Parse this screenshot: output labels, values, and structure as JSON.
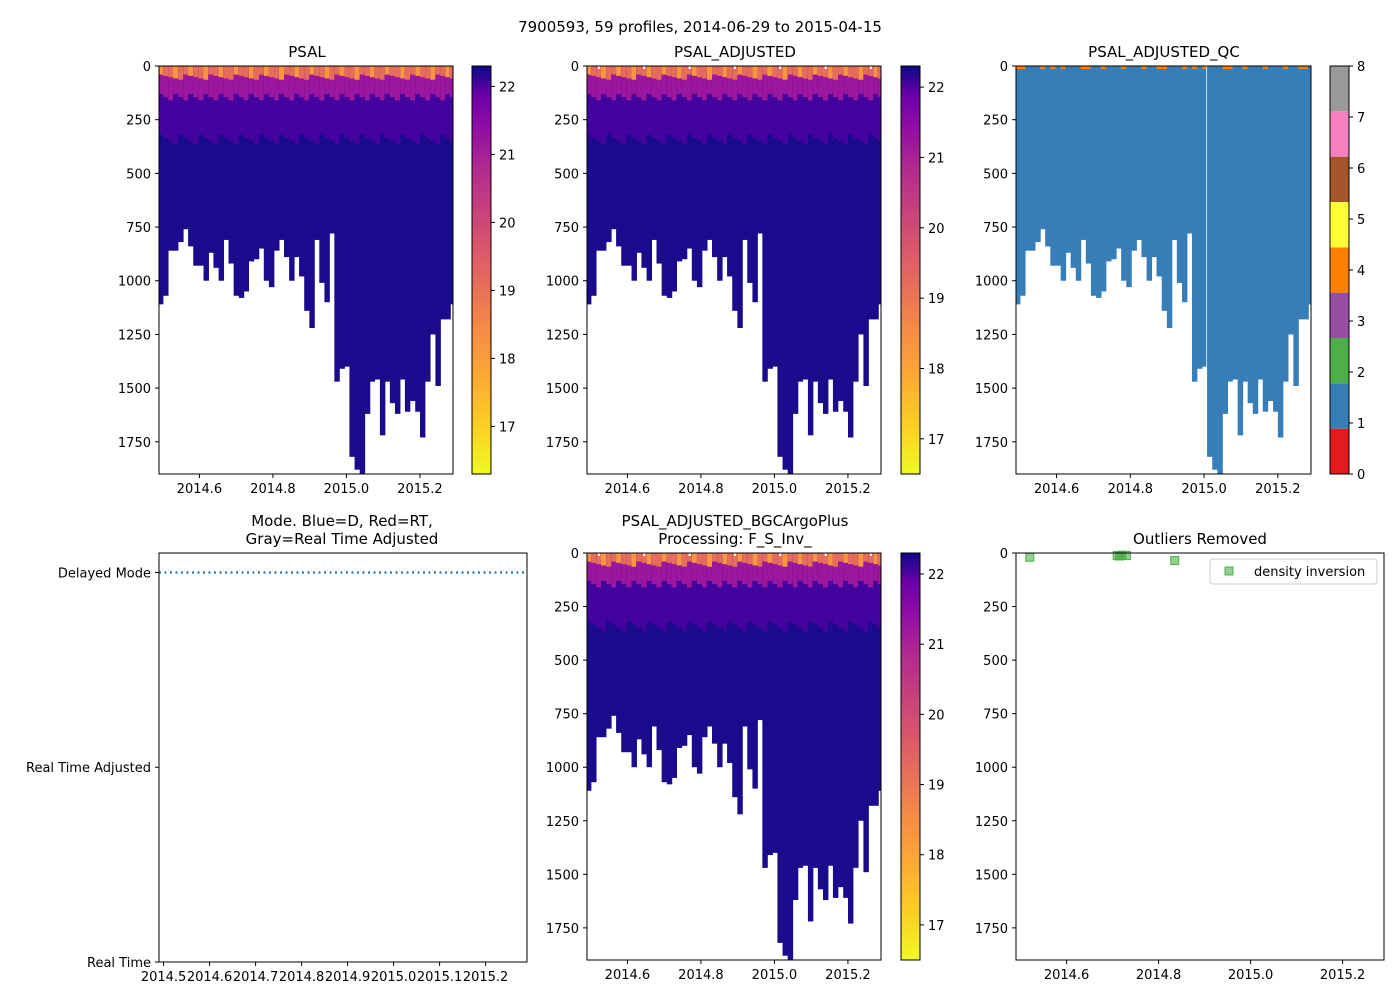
{
  "figure": {
    "suptitle": "7900593, 59 profiles, 2014-06-29 to 2015-04-15"
  },
  "colors": {
    "deep_salinity": "#1a0a8c",
    "qc_fill": "#377eb8",
    "mode_line": "#1f77b4",
    "outlier_marker": "#4daf4a"
  },
  "chart_data": [
    {
      "id": "psal",
      "type": "heatmap",
      "title": "PSAL",
      "x_ticks": [
        "2014.6",
        "2014.8",
        "2015.0",
        "2015.2"
      ],
      "x_tick_values": [
        2014.6,
        2014.8,
        2015.0,
        2015.2
      ],
      "xlim": [
        2014.49,
        2015.29
      ],
      "y_ticks": [
        "0",
        "250",
        "500",
        "750",
        "1000",
        "1250",
        "1500",
        "1750"
      ],
      "y_tick_values": [
        0,
        250,
        500,
        750,
        1000,
        1250,
        1500,
        1750
      ],
      "ylim": [
        1900,
        0
      ],
      "colorbar": {
        "colormap": "plasma_r",
        "ticks": [
          "17",
          "18",
          "19",
          "20",
          "21",
          "22"
        ],
        "tick_values": [
          17,
          18,
          19,
          20,
          21,
          22
        ],
        "range": [
          16.3,
          22.3
        ]
      }
    },
    {
      "id": "psal_adj",
      "type": "heatmap",
      "title": "PSAL_ADJUSTED",
      "x_ticks": [
        "2014.6",
        "2014.8",
        "2015.0",
        "2015.2"
      ],
      "x_tick_values": [
        2014.6,
        2014.8,
        2015.0,
        2015.2
      ],
      "xlim": [
        2014.49,
        2015.29
      ],
      "y_ticks": [
        "0",
        "250",
        "500",
        "750",
        "1000",
        "1250",
        "1500",
        "1750"
      ],
      "y_tick_values": [
        0,
        250,
        500,
        750,
        1000,
        1250,
        1500,
        1750
      ],
      "ylim": [
        1900,
        0
      ],
      "colorbar": {
        "colormap": "plasma_r",
        "ticks": [
          "17",
          "18",
          "19",
          "20",
          "21",
          "22"
        ],
        "tick_values": [
          17,
          18,
          19,
          20,
          21,
          22
        ],
        "range": [
          16.5,
          22.3
        ]
      }
    },
    {
      "id": "psal_qc",
      "type": "heatmap",
      "title": "PSAL_ADJUSTED_QC",
      "x_ticks": [
        "2014.6",
        "2014.8",
        "2015.0",
        "2015.2"
      ],
      "x_tick_values": [
        2014.6,
        2014.8,
        2015.0,
        2015.2
      ],
      "xlim": [
        2014.49,
        2015.29
      ],
      "y_ticks": [
        "0",
        "250",
        "500",
        "750",
        "1000",
        "1250",
        "1500",
        "1750"
      ],
      "y_tick_values": [
        0,
        250,
        500,
        750,
        1000,
        1250,
        1500,
        1750
      ],
      "ylim": [
        1900,
        0
      ],
      "colorbar": {
        "colormap": "qc_categorical",
        "ticks": [
          "0",
          "1",
          "2",
          "3",
          "4",
          "5",
          "6",
          "7",
          "8"
        ],
        "tick_values": [
          0,
          1,
          2,
          3,
          4,
          5,
          6,
          7,
          8
        ],
        "range": [
          0,
          8
        ],
        "category_colors": [
          "#e41a1c",
          "#377eb8",
          "#4daf4a",
          "#984ea3",
          "#ff7f00",
          "#ffff33",
          "#a65628",
          "#f781bf",
          "#999999"
        ]
      }
    },
    {
      "id": "mode",
      "type": "line",
      "title_lines": [
        "Mode. Blue=D, Red=RT,",
        "Gray=Real Time Adjusted"
      ],
      "x_ticks": [
        "2014.5",
        "2014.6",
        "2014.7",
        "2014.8",
        "2014.9",
        "2015.0",
        "2015.1",
        "2015.2"
      ],
      "x_tick_values": [
        2014.5,
        2014.6,
        2014.7,
        2014.8,
        2014.9,
        2015.0,
        2015.1,
        2015.2
      ],
      "xlim": [
        2014.49,
        2015.29
      ],
      "y_ticks": [
        "Real Time",
        "Real Time Adjusted",
        "Delayed Mode"
      ],
      "y_tick_values": [
        0,
        1,
        2
      ],
      "ylim": [
        0,
        2.1
      ],
      "series": [
        {
          "name": "Delayed Mode",
          "style": "dotted",
          "x": [
            2014.49,
            2015.29
          ],
          "y": [
            2,
            2
          ]
        }
      ]
    },
    {
      "id": "psal_bgc",
      "type": "heatmap",
      "title_lines": [
        "PSAL_ADJUSTED_BGCArgoPlus",
        "Processing: F_S_Inv_"
      ],
      "x_ticks": [
        "2014.6",
        "2014.8",
        "2015.0",
        "2015.2"
      ],
      "x_tick_values": [
        2014.6,
        2014.8,
        2015.0,
        2015.2
      ],
      "xlim": [
        2014.49,
        2015.29
      ],
      "y_ticks": [
        "0",
        "250",
        "500",
        "750",
        "1000",
        "1250",
        "1500",
        "1750"
      ],
      "y_tick_values": [
        0,
        250,
        500,
        750,
        1000,
        1250,
        1500,
        1750
      ],
      "ylim": [
        1900,
        0
      ],
      "colorbar": {
        "colormap": "plasma_r",
        "ticks": [
          "17",
          "18",
          "19",
          "20",
          "21",
          "22"
        ],
        "tick_values": [
          17,
          18,
          19,
          20,
          21,
          22
        ],
        "range": [
          16.5,
          22.3
        ]
      }
    },
    {
      "id": "outliers",
      "type": "scatter",
      "title": "Outliers Removed",
      "x_ticks": [
        "2014.6",
        "2014.8",
        "2015.0",
        "2015.2"
      ],
      "x_tick_values": [
        2014.6,
        2014.8,
        2015.0,
        2015.2
      ],
      "xlim": [
        2014.49,
        2015.29
      ],
      "y_ticks": [
        "0",
        "250",
        "500",
        "750",
        "1000",
        "1250",
        "1500",
        "1750"
      ],
      "y_tick_values": [
        0,
        250,
        500,
        750,
        1000,
        1250,
        1500,
        1750
      ],
      "ylim": [
        1900,
        0
      ],
      "legend": {
        "label": "density inversion",
        "position": "top-right"
      },
      "series": [
        {
          "name": "density inversion",
          "x": [
            2014.52,
            2014.71,
            2014.715,
            2014.72,
            2014.73,
            2014.835
          ],
          "y": [
            20,
            12,
            14,
            10,
            12,
            35
          ]
        }
      ]
    }
  ],
  "profiles": {
    "x": [
      2014.494,
      2014.508,
      2014.522,
      2014.535,
      2014.549,
      2014.563,
      2014.576,
      2014.59,
      2014.604,
      2014.618,
      2014.631,
      2014.645,
      2014.659,
      2014.672,
      2014.686,
      2014.7,
      2014.714,
      2014.727,
      2014.741,
      2014.755,
      2014.769,
      2014.782,
      2014.796,
      2014.81,
      2014.823,
      2014.837,
      2014.851,
      2014.865,
      2014.878,
      2014.892,
      2014.906,
      2014.919,
      2014.933,
      2014.947,
      2014.961,
      2014.974,
      2014.988,
      2015.002,
      2015.015,
      2015.029,
      2015.043,
      2015.057,
      2015.07,
      2015.084,
      2015.098,
      2015.111,
      2015.125,
      2015.139,
      2015.153,
      2015.166,
      2015.18,
      2015.194,
      2015.207,
      2015.221,
      2015.235,
      2015.249,
      2015.262,
      2015.276,
      2015.288
    ],
    "max_depth": [
      1110,
      1070,
      860,
      860,
      820,
      760,
      840,
      930,
      930,
      1000,
      870,
      940,
      1000,
      810,
      920,
      1070,
      1080,
      1050,
      910,
      900,
      850,
      1000,
      1030,
      860,
      810,
      890,
      1000,
      890,
      980,
      1140,
      1220,
      810,
      1010,
      1100,
      780,
      1470,
      1410,
      1400,
      1820,
      1880,
      1910,
      1620,
      1470,
      1460,
      1720,
      1470,
      1570,
      1620,
      1460,
      1610,
      1560,
      1610,
      1730,
      1470,
      1250,
      1490,
      1180,
      1180,
      1110
    ]
  }
}
